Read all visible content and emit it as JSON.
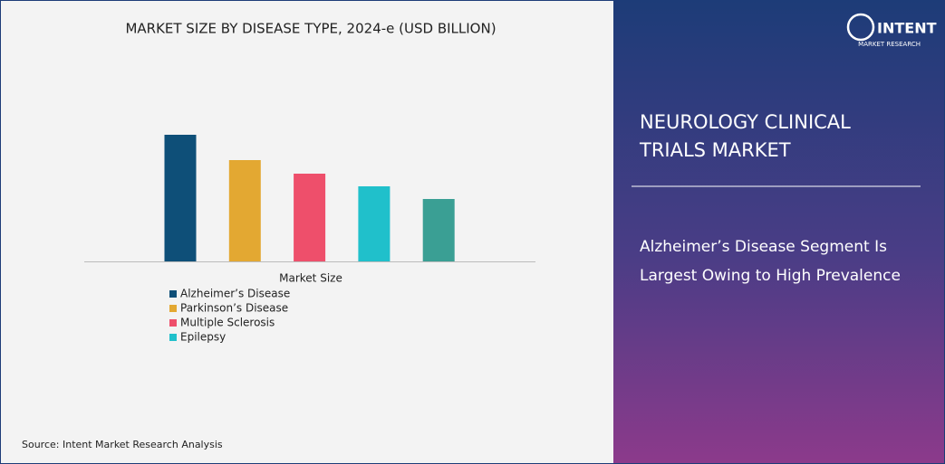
{
  "chart_data": {
    "type": "bar",
    "title": "MARKET SIZE BY DISEASE TYPE, 2024-e (USD BILLION)",
    "x_label": "Market Size",
    "categories": [
      "Alzheimer’s Disease",
      "Parkinson’s Disease",
      "Multiple Sclerosis",
      "Epilepsy",
      null
    ],
    "values": [
      140,
      112,
      97,
      83,
      69
    ],
    "colors": [
      "#0e4f78",
      "#e3a832",
      "#ee4f6b",
      "#20c0cb",
      "#3a9f94"
    ]
  },
  "source": "Source:  Intent Market Research Analysis",
  "panel": {
    "logo": "INTENT",
    "logo_sub": "MARKET RESEARCH",
    "title_lines": [
      "NEUROLOGY CLINICAL",
      "TRIALS MARKET"
    ],
    "text_lines": [
      "Alzheimer’s Disease Segment Is",
      "Largest Owing to High Prevalence"
    ]
  }
}
